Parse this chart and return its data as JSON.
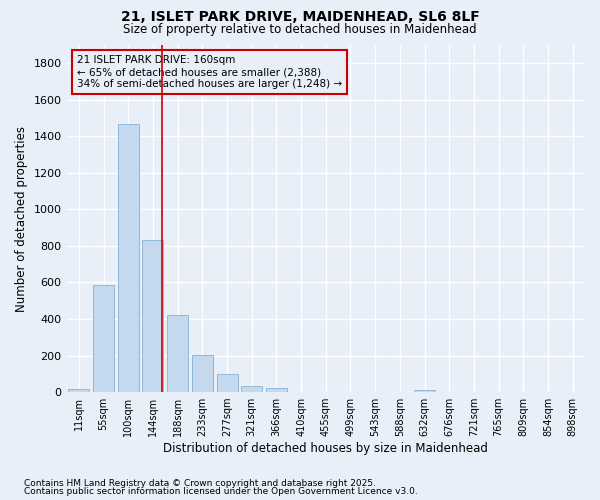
{
  "title1": "21, ISLET PARK DRIVE, MAIDENHEAD, SL6 8LF",
  "title2": "Size of property relative to detached houses in Maidenhead",
  "xlabel": "Distribution of detached houses by size in Maidenhead",
  "ylabel": "Number of detached properties",
  "categories": [
    "11sqm",
    "55sqm",
    "100sqm",
    "144sqm",
    "188sqm",
    "233sqm",
    "277sqm",
    "321sqm",
    "366sqm",
    "410sqm",
    "455sqm",
    "499sqm",
    "543sqm",
    "588sqm",
    "632sqm",
    "676sqm",
    "721sqm",
    "765sqm",
    "809sqm",
    "854sqm",
    "898sqm"
  ],
  "values": [
    15,
    585,
    1470,
    830,
    420,
    205,
    100,
    35,
    25,
    0,
    0,
    0,
    0,
    0,
    10,
    0,
    0,
    0,
    0,
    0,
    0
  ],
  "bar_color": "#c5d9ee",
  "bar_edge_color": "#90b8d8",
  "background_color": "#e8eff8",
  "grid_color": "#ffffff",
  "vline_color": "#cc0000",
  "vline_pos": 3.35,
  "annotation_line1": "21 ISLET PARK DRIVE: 160sqm",
  "annotation_line2": "← 65% of detached houses are smaller (2,388)",
  "annotation_line3": "34% of semi-detached houses are larger (1,248) →",
  "annotation_box_edgecolor": "#cc0000",
  "footer1": "Contains HM Land Registry data © Crown copyright and database right 2025.",
  "footer2": "Contains public sector information licensed under the Open Government Licence v3.0.",
  "ylim_max": 1900,
  "yticks": [
    0,
    200,
    400,
    600,
    800,
    1000,
    1200,
    1400,
    1600,
    1800
  ]
}
